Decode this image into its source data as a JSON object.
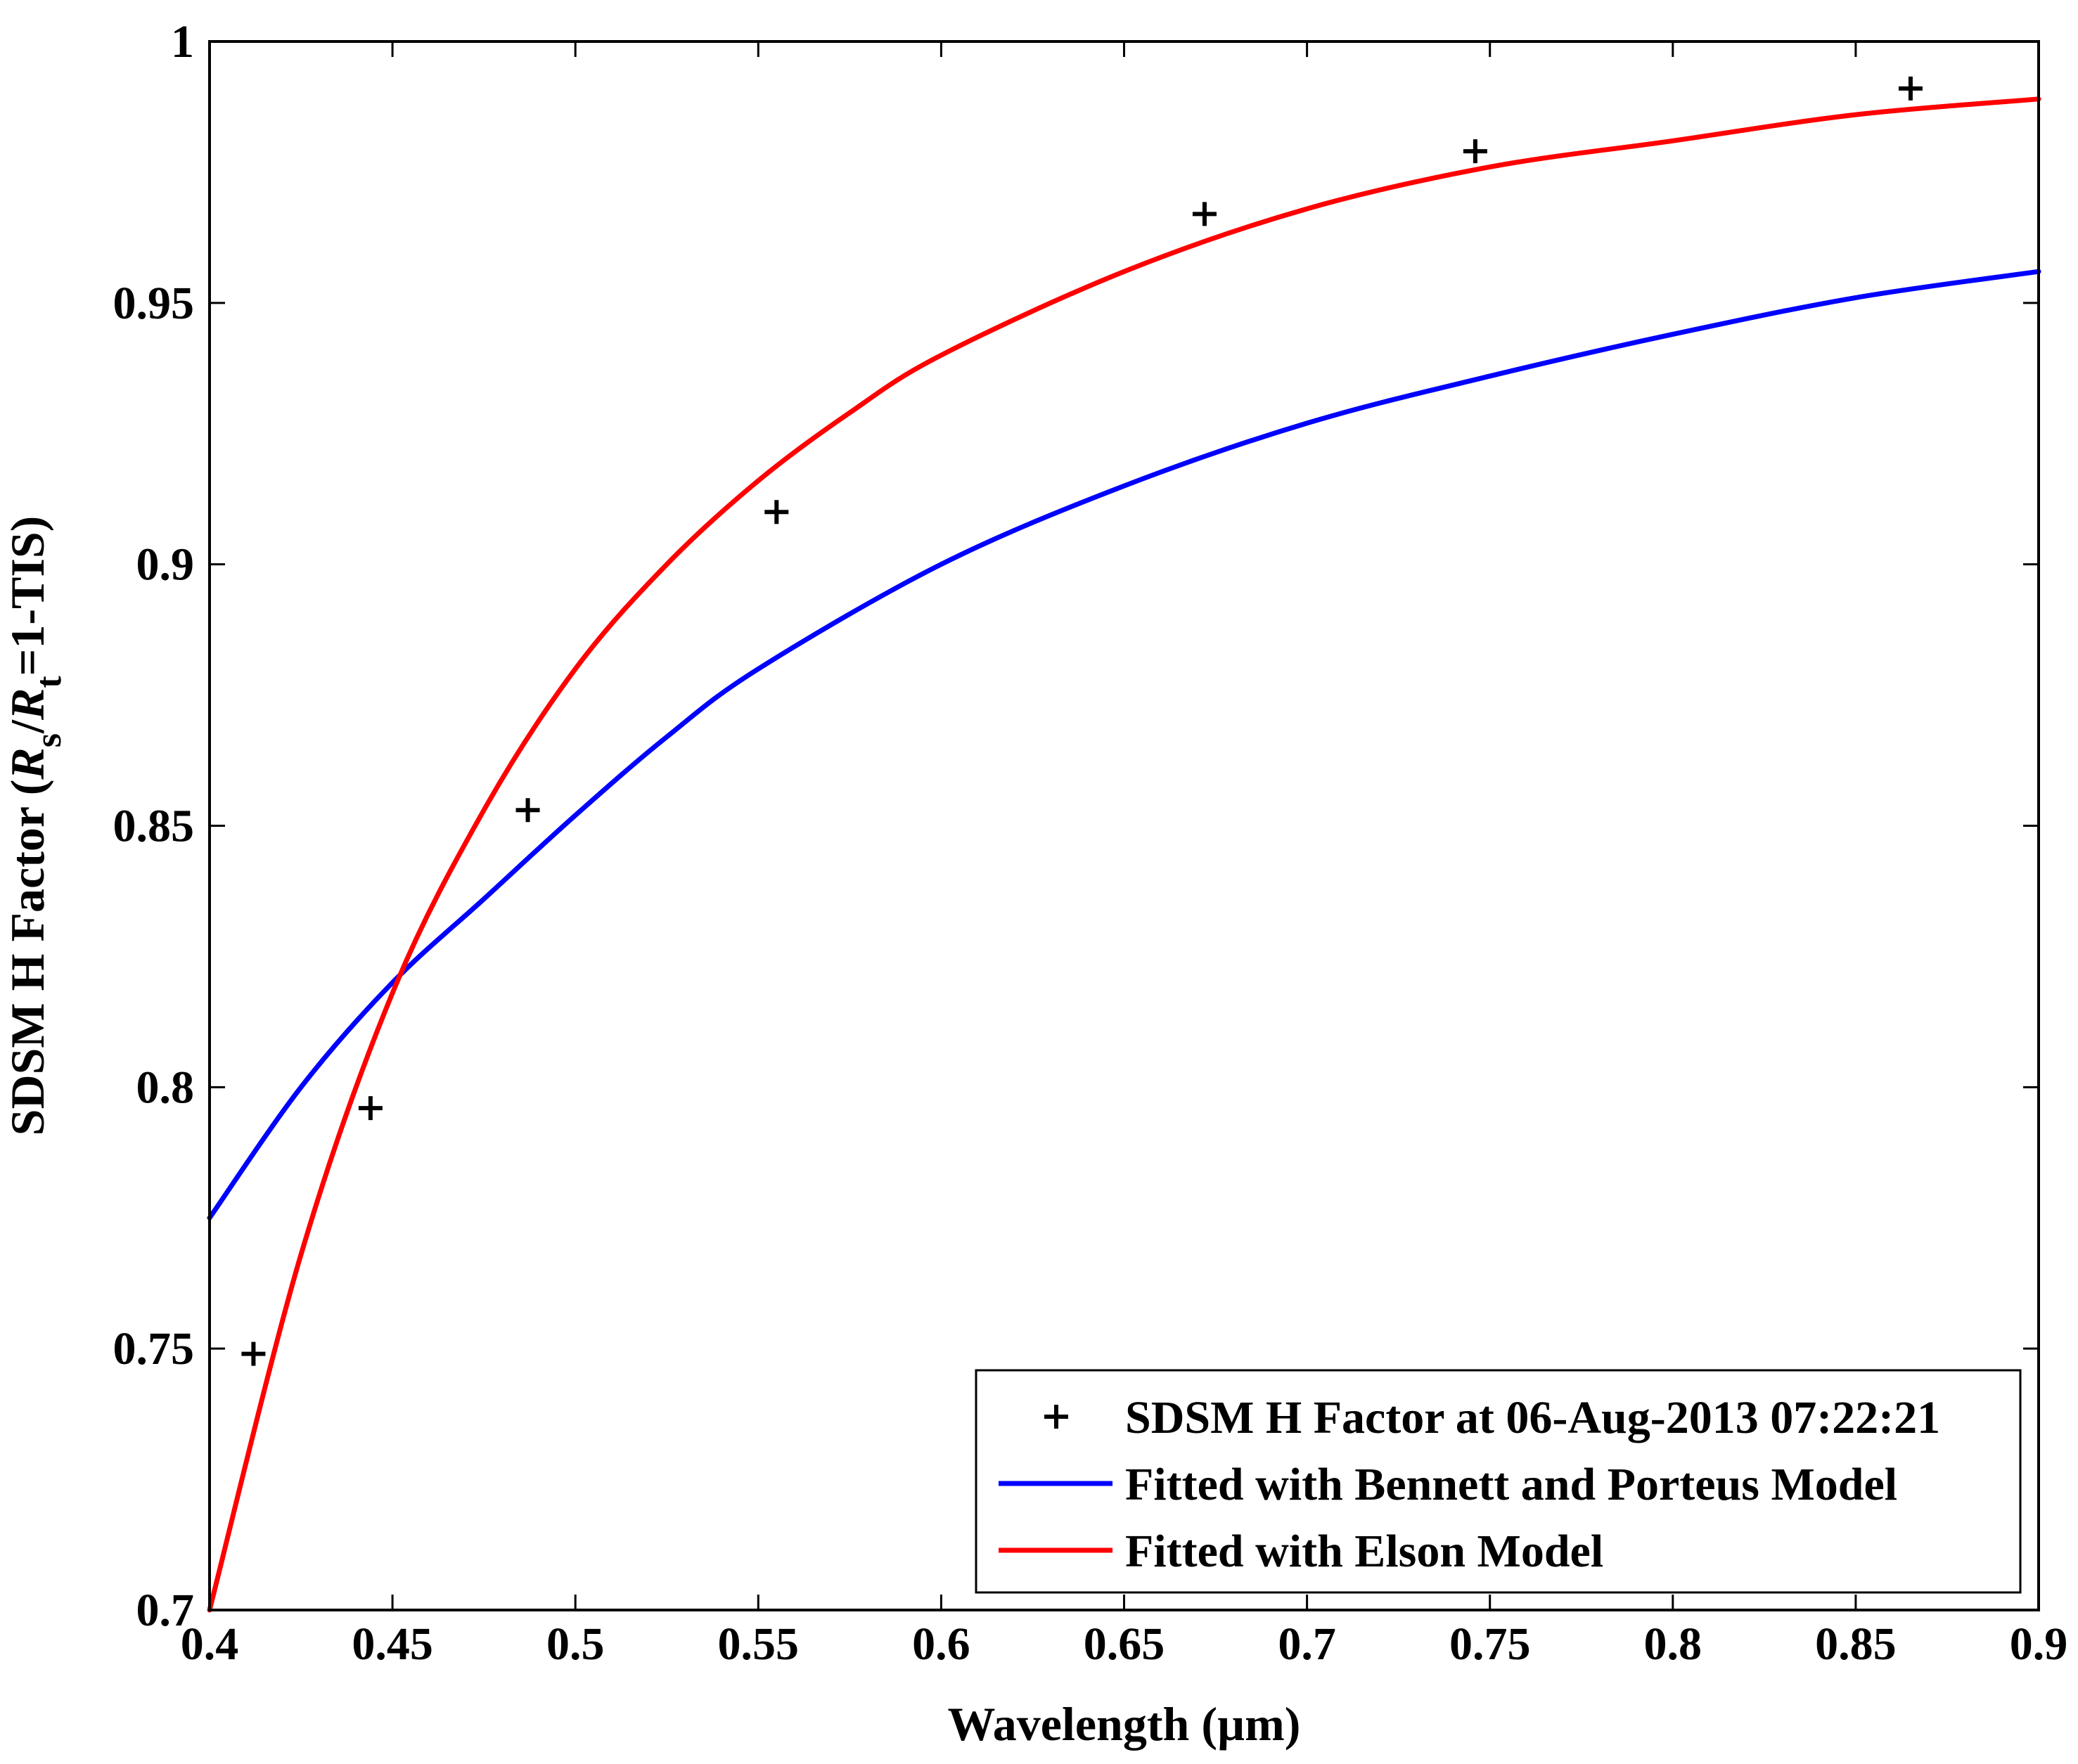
{
  "chart_data": {
    "type": "line",
    "xlabel": "Wavelength (µm)",
    "ylabel": {
      "prefix": "SDSM H Factor (",
      "r1": "R",
      "sub1": "s",
      "mid": "/",
      "r2": "R",
      "sub2": "t",
      "suffix": "=1-TIS)"
    },
    "xlim": [
      0.4,
      0.9
    ],
    "ylim": [
      0.7,
      1.0
    ],
    "xticks": [
      "0.4",
      "0.45",
      "0.5",
      "0.55",
      "0.6",
      "0.65",
      "0.7",
      "0.75",
      "0.8",
      "0.85",
      "0.9"
    ],
    "yticks": [
      "0.7",
      "0.75",
      "0.8",
      "0.85",
      "0.9",
      "0.95",
      "1"
    ],
    "grid": false,
    "legend_position": "bottom-right",
    "series": [
      {
        "name": "SDSM H Factor at 06-Aug-2013 07:22:21",
        "kind": "marker",
        "marker": "+",
        "color": "#000000",
        "x": [
          0.412,
          0.444,
          0.487,
          0.555,
          0.672,
          0.746,
          0.865
        ],
        "y": [
          0.749,
          0.796,
          0.853,
          0.91,
          0.967,
          0.979,
          0.991
        ]
      },
      {
        "name": "Fitted with Bennett and Porteus Model",
        "kind": "line",
        "color": "#0000ff",
        "x": [
          0.4,
          0.425,
          0.45,
          0.475,
          0.5,
          0.525,
          0.55,
          0.6,
          0.65,
          0.7,
          0.75,
          0.8,
          0.85,
          0.9
        ],
        "y": [
          0.775,
          0.8,
          0.82,
          0.836,
          0.852,
          0.867,
          0.88,
          0.9,
          0.915,
          0.927,
          0.936,
          0.944,
          0.951,
          0.956
        ]
      },
      {
        "name": "Fitted with Elson Model",
        "kind": "line",
        "color": "#ff0000",
        "x": [
          0.4,
          0.425,
          0.45,
          0.475,
          0.5,
          0.525,
          0.55,
          0.575,
          0.6,
          0.65,
          0.7,
          0.75,
          0.8,
          0.85,
          0.9
        ],
        "y": [
          0.7,
          0.768,
          0.818,
          0.853,
          0.88,
          0.9,
          0.916,
          0.929,
          0.94,
          0.956,
          0.968,
          0.976,
          0.981,
          0.986,
          0.989
        ]
      }
    ]
  }
}
